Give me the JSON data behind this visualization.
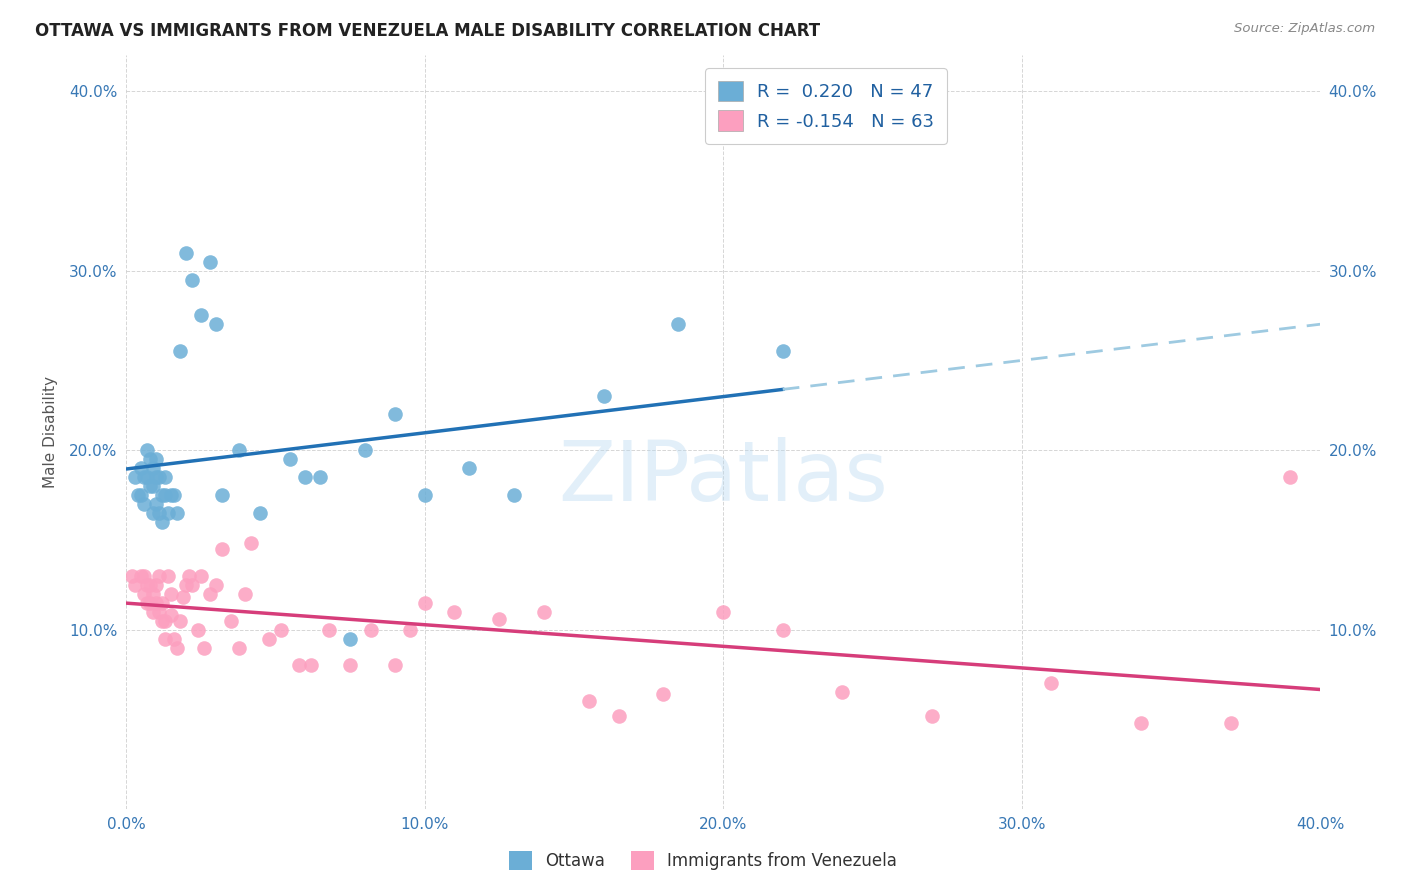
{
  "title": "OTTAWA VS IMMIGRANTS FROM VENEZUELA MALE DISABILITY CORRELATION CHART",
  "source": "Source: ZipAtlas.com",
  "ylabel": "Male Disability",
  "xlim": [
    0.0,
    0.4
  ],
  "ylim": [
    0.0,
    0.42
  ],
  "yticks": [
    0.1,
    0.2,
    0.3,
    0.4
  ],
  "xticks": [
    0.0,
    0.1,
    0.2,
    0.3,
    0.4
  ],
  "xtick_labels": [
    "0.0%",
    "10.0%",
    "20.0%",
    "30.0%",
    "40.0%"
  ],
  "ytick_labels": [
    "10.0%",
    "20.0%",
    "30.0%",
    "40.0%"
  ],
  "legend_labels": [
    "Ottawa",
    "Immigrants from Venezuela"
  ],
  "series1_R": "0.220",
  "series1_N": "47",
  "series2_R": "-0.154",
  "series2_N": "63",
  "series1_color": "#6baed6",
  "series2_color": "#fc9fbf",
  "series1_line_color": "#2171b5",
  "series2_line_color": "#d63d7a",
  "dashed_line_color": "#9ecae1",
  "background_color": "#ffffff",
  "watermark": "ZIPatlas",
  "series1_x": [
    0.003,
    0.004,
    0.005,
    0.005,
    0.006,
    0.006,
    0.007,
    0.007,
    0.008,
    0.008,
    0.009,
    0.009,
    0.009,
    0.01,
    0.01,
    0.01,
    0.011,
    0.011,
    0.012,
    0.012,
    0.013,
    0.013,
    0.014,
    0.015,
    0.016,
    0.017,
    0.018,
    0.02,
    0.022,
    0.025,
    0.028,
    0.03,
    0.032,
    0.038,
    0.045,
    0.055,
    0.06,
    0.065,
    0.075,
    0.08,
    0.09,
    0.1,
    0.115,
    0.13,
    0.16,
    0.185,
    0.22
  ],
  "series1_y": [
    0.185,
    0.175,
    0.19,
    0.175,
    0.185,
    0.17,
    0.2,
    0.185,
    0.195,
    0.18,
    0.19,
    0.18,
    0.165,
    0.195,
    0.185,
    0.17,
    0.185,
    0.165,
    0.175,
    0.16,
    0.185,
    0.175,
    0.165,
    0.175,
    0.175,
    0.165,
    0.255,
    0.31,
    0.295,
    0.275,
    0.305,
    0.27,
    0.175,
    0.2,
    0.165,
    0.195,
    0.185,
    0.185,
    0.095,
    0.2,
    0.22,
    0.175,
    0.19,
    0.175,
    0.23,
    0.27,
    0.255
  ],
  "series2_x": [
    0.002,
    0.003,
    0.005,
    0.006,
    0.006,
    0.007,
    0.007,
    0.008,
    0.008,
    0.009,
    0.009,
    0.01,
    0.01,
    0.011,
    0.011,
    0.012,
    0.012,
    0.013,
    0.013,
    0.014,
    0.015,
    0.015,
    0.016,
    0.017,
    0.018,
    0.019,
    0.02,
    0.021,
    0.022,
    0.024,
    0.025,
    0.026,
    0.028,
    0.03,
    0.032,
    0.035,
    0.038,
    0.04,
    0.042,
    0.048,
    0.052,
    0.058,
    0.062,
    0.068,
    0.075,
    0.082,
    0.09,
    0.095,
    0.1,
    0.11,
    0.125,
    0.14,
    0.155,
    0.165,
    0.18,
    0.2,
    0.22,
    0.24,
    0.27,
    0.31,
    0.34,
    0.37,
    0.39
  ],
  "series2_y": [
    0.13,
    0.125,
    0.13,
    0.13,
    0.12,
    0.125,
    0.115,
    0.125,
    0.115,
    0.12,
    0.11,
    0.125,
    0.115,
    0.13,
    0.11,
    0.115,
    0.105,
    0.105,
    0.095,
    0.13,
    0.12,
    0.108,
    0.095,
    0.09,
    0.105,
    0.118,
    0.125,
    0.13,
    0.125,
    0.1,
    0.13,
    0.09,
    0.12,
    0.125,
    0.145,
    0.105,
    0.09,
    0.12,
    0.148,
    0.095,
    0.1,
    0.08,
    0.08,
    0.1,
    0.08,
    0.1,
    0.08,
    0.1,
    0.115,
    0.11,
    0.106,
    0.11,
    0.06,
    0.052,
    0.064,
    0.11,
    0.1,
    0.065,
    0.052,
    0.07,
    0.048,
    0.048,
    0.185
  ]
}
